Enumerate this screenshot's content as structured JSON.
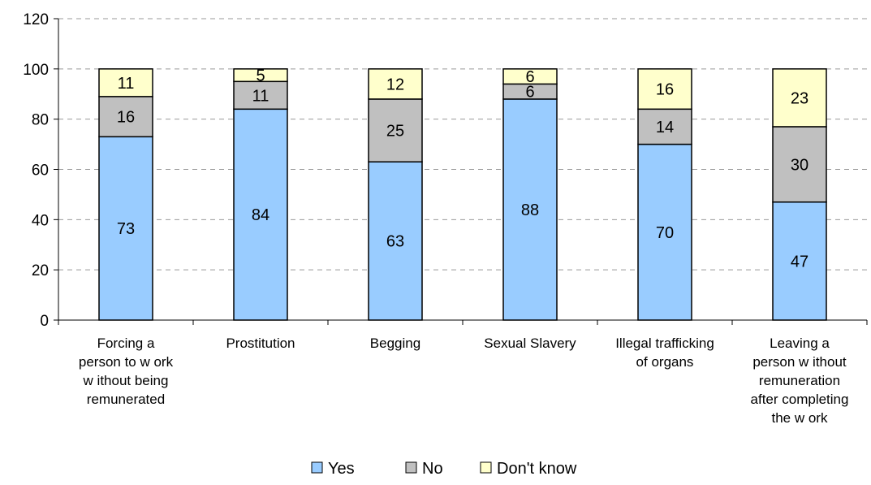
{
  "chart_data": {
    "type": "bar",
    "stacked": true,
    "title": "",
    "xlabel": "",
    "ylabel": "",
    "ylim": [
      0,
      120
    ],
    "yticks": [
      0,
      20,
      40,
      60,
      80,
      100,
      120
    ],
    "grid": "horizontal dashed",
    "legend_position": "bottom",
    "categories": [
      [
        "Forcing a",
        "person to w ork",
        "w ithout being",
        "remunerated"
      ],
      [
        "Prostitution"
      ],
      [
        "Begging"
      ],
      [
        "Sexual Slavery"
      ],
      [
        "Illegal trafficking",
        "of organs"
      ],
      [
        "Leaving a",
        "person w ithout",
        "remuneration",
        "after completing",
        "the w ork"
      ]
    ],
    "series": [
      {
        "name": "Yes",
        "color": "#99CCFF",
        "values": [
          73,
          84,
          63,
          88,
          70,
          47
        ]
      },
      {
        "name": "No",
        "color": "#C0C0C0",
        "values": [
          16,
          11,
          25,
          6,
          14,
          30
        ]
      },
      {
        "name": "Don't know",
        "color": "#FFFFCC",
        "values": [
          11,
          5,
          12,
          6,
          16,
          23
        ]
      }
    ]
  }
}
